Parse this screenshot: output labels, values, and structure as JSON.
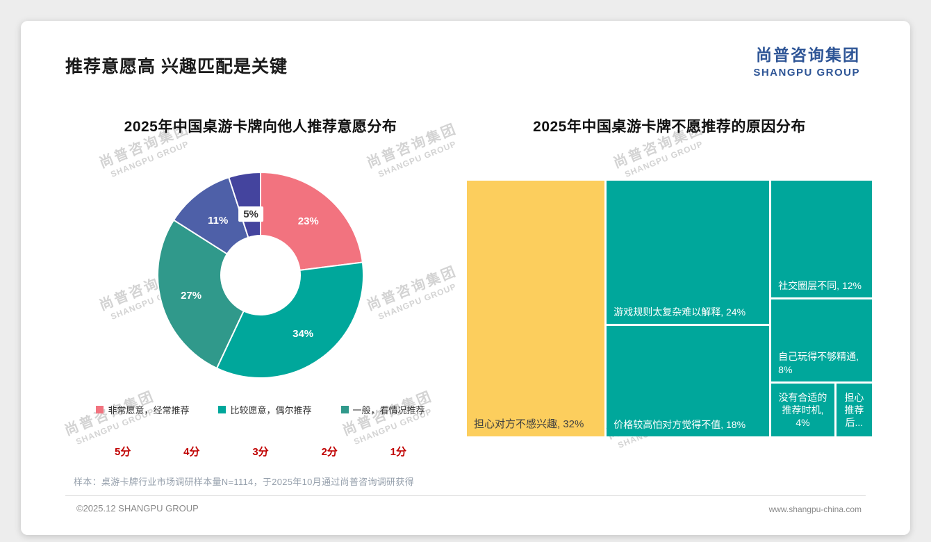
{
  "page": {
    "title": "推荐意愿高 兴趣匹配是关键",
    "logo": {
      "cn": "尚普咨询集团",
      "en": "SHANGPU GROUP"
    },
    "watermark": {
      "cn": "尚普咨询集团",
      "en": "SHANGPU GROUP"
    },
    "footnote": "样本：桌游卡牌行业市场调研样本量N=1114，于2025年10月通过尚普咨询调研获得",
    "footer": {
      "left": "©2025.12 SHANGPU GROUP",
      "right": "www.shangpu-china.com"
    },
    "colors": {
      "logo_blue": "#2E5596",
      "score_red": "#C00000",
      "watermark_gray": "#D3D3D3"
    }
  },
  "chart_data": [
    {
      "type": "pie",
      "title": "2025年中国桌游卡牌向他人推荐意愿分布",
      "subtype": "donut",
      "slices": [
        {
          "value": 23,
          "display": "23%",
          "color": "#F2737F"
        },
        {
          "value": 34,
          "display": "34%",
          "color": "#00A79B"
        },
        {
          "value": 27,
          "display": "27%",
          "color": "#30998B"
        },
        {
          "value": 11,
          "display": "11%",
          "color": "#4E60A8"
        },
        {
          "value": 5,
          "display": "5%",
          "color": "#44449E",
          "label_text_color": "#333333",
          "label_bg": "#FFFFFF"
        }
      ],
      "legend": [
        {
          "label": "非常愿意，经常推荐",
          "color": "#F2737F"
        },
        {
          "label": "比较愿意，偶尔推荐",
          "color": "#00A79B"
        },
        {
          "label": "一般，看情况推荐",
          "color": "#30998B"
        }
      ],
      "scores": [
        "5分",
        "4分",
        "3分",
        "2分",
        "1分"
      ],
      "legend_position": "bottom"
    },
    {
      "type": "treemap",
      "title": "2025年中国桌游卡牌不愿推荐的原因分布",
      "items": [
        {
          "label": "担心对方不感兴趣",
          "value": 32,
          "display": "担心对方不感兴趣, 32%",
          "color": "#FCCE5D",
          "text_color": "#404040"
        },
        {
          "label": "游戏规则太复杂难以解释",
          "value": 24,
          "display": "游戏规则太复杂难以解释, 24%",
          "color": "#00A79B",
          "text_color": "#FFFFFF"
        },
        {
          "label": "价格较高怕对方觉得不值",
          "value": 18,
          "display": "价格较高怕对方觉得不值, 18%",
          "color": "#00A79B",
          "text_color": "#FFFFFF"
        },
        {
          "label": "社交圈层不同",
          "value": 12,
          "display": "社交圈层不同, 12%",
          "color": "#00A79B",
          "text_color": "#FFFFFF"
        },
        {
          "label": "自己玩得不够精通",
          "value": 8,
          "display": "自己玩得不够精通, 8%",
          "color": "#00A79B",
          "text_color": "#FFFFFF"
        },
        {
          "label": "没有合适的推荐时机",
          "value": 4,
          "display": "没有合适的推荐时机, 4%",
          "color": "#00A79B",
          "text_color": "#FFFFFF"
        },
        {
          "label": "担心推荐后…",
          "value": 2,
          "display": "担心推荐后...",
          "color": "#00A79B",
          "text_color": "#FFFFFF"
        }
      ]
    }
  ]
}
